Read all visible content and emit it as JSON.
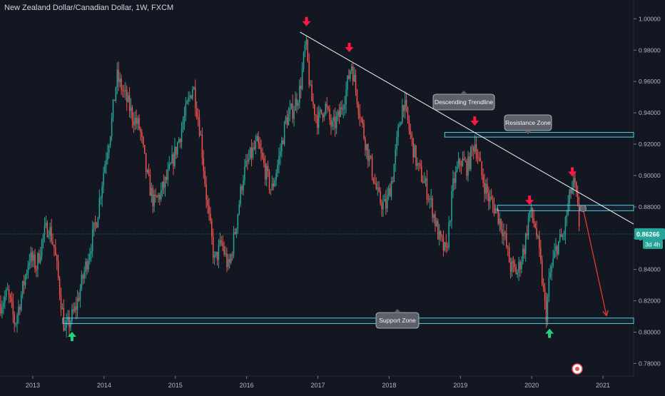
{
  "header": {
    "symbol_title": "New Zealand Dollar/Canadian Dollar, 1W, FXCM"
  },
  "colors": {
    "background": "#131722",
    "up_candle": "#26a69a",
    "down_candle": "#ef5350",
    "zone_border": "#4dd0e1",
    "trendline": "#e0e3eb",
    "arrow_red": "#ff1744",
    "arrow_green": "#26d07c",
    "projection": "#e53935",
    "price_badge": "#26a69a",
    "label_bg": "#5d606b"
  },
  "annotations": {
    "descending_trendline": "Descending Trendline",
    "resistance_zone": "Resistance Zone",
    "support_zone": "Support Zone"
  },
  "price_badge": {
    "value": "0.86266",
    "countdown": "3d 4h"
  },
  "chart_data": {
    "type": "candlestick",
    "title": "New Zealand Dollar/Canadian Dollar, 1W, FXCM",
    "x_axis_labels": [
      "2013",
      "2014",
      "2015",
      "2016",
      "2017",
      "2018",
      "2019",
      "2020",
      "2021"
    ],
    "y_axis_labels": [
      "1.00000",
      "0.98000",
      "0.96000",
      "0.94000",
      "0.92000",
      "0.90000",
      "0.88000",
      "0.86000",
      "0.84000",
      "0.82000",
      "0.80000",
      "0.78000"
    ],
    "ylim": [
      0.772,
      1.012
    ],
    "xlim": [
      2012.54,
      2021.43
    ],
    "current_price": 0.86266,
    "price_path": [
      [
        2012.55,
        0.818
      ],
      [
        2012.65,
        0.825
      ],
      [
        2012.75,
        0.805
      ],
      [
        2012.85,
        0.826
      ],
      [
        2012.95,
        0.848
      ],
      [
        2013.05,
        0.842
      ],
      [
        2013.15,
        0.862
      ],
      [
        2013.22,
        0.868
      ],
      [
        2013.3,
        0.854
      ],
      [
        2013.38,
        0.826
      ],
      [
        2013.45,
        0.8
      ],
      [
        2013.52,
        0.807
      ],
      [
        2013.6,
        0.815
      ],
      [
        2013.7,
        0.834
      ],
      [
        2013.8,
        0.853
      ],
      [
        2013.9,
        0.873
      ],
      [
        2014.0,
        0.905
      ],
      [
        2014.1,
        0.932
      ],
      [
        2014.18,
        0.963
      ],
      [
        2014.3,
        0.95
      ],
      [
        2014.4,
        0.938
      ],
      [
        2014.5,
        0.93
      ],
      [
        2014.6,
        0.9
      ],
      [
        2014.7,
        0.882
      ],
      [
        2014.8,
        0.889
      ],
      [
        2014.9,
        0.9
      ],
      [
        2015.0,
        0.915
      ],
      [
        2015.1,
        0.932
      ],
      [
        2015.2,
        0.95
      ],
      [
        2015.25,
        0.958
      ],
      [
        2015.35,
        0.928
      ],
      [
        2015.45,
        0.88
      ],
      [
        2015.55,
        0.845
      ],
      [
        2015.65,
        0.857
      ],
      [
        2015.75,
        0.84
      ],
      [
        2015.85,
        0.868
      ],
      [
        2015.95,
        0.9
      ],
      [
        2016.05,
        0.912
      ],
      [
        2016.15,
        0.92
      ],
      [
        2016.25,
        0.905
      ],
      [
        2016.35,
        0.89
      ],
      [
        2016.45,
        0.91
      ],
      [
        2016.55,
        0.935
      ],
      [
        2016.65,
        0.942
      ],
      [
        2016.75,
        0.955
      ],
      [
        2016.83,
        0.985
      ],
      [
        2016.9,
        0.95
      ],
      [
        2017.0,
        0.935
      ],
      [
        2017.1,
        0.945
      ],
      [
        2017.2,
        0.93
      ],
      [
        2017.3,
        0.938
      ],
      [
        2017.4,
        0.955
      ],
      [
        2017.47,
        0.972
      ],
      [
        2017.55,
        0.95
      ],
      [
        2017.65,
        0.925
      ],
      [
        2017.75,
        0.905
      ],
      [
        2017.85,
        0.885
      ],
      [
        2017.95,
        0.88
      ],
      [
        2018.05,
        0.9
      ],
      [
        2018.15,
        0.935
      ],
      [
        2018.2,
        0.948
      ],
      [
        2018.3,
        0.925
      ],
      [
        2018.4,
        0.905
      ],
      [
        2018.5,
        0.895
      ],
      [
        2018.6,
        0.88
      ],
      [
        2018.7,
        0.86
      ],
      [
        2018.8,
        0.85
      ],
      [
        2018.9,
        0.895
      ],
      [
        2019.0,
        0.91
      ],
      [
        2019.1,
        0.905
      ],
      [
        2019.2,
        0.922
      ],
      [
        2019.3,
        0.9
      ],
      [
        2019.4,
        0.885
      ],
      [
        2019.5,
        0.878
      ],
      [
        2019.6,
        0.865
      ],
      [
        2019.7,
        0.842
      ],
      [
        2019.8,
        0.838
      ],
      [
        2019.9,
        0.855
      ],
      [
        2019.97,
        0.877
      ],
      [
        2020.05,
        0.868
      ],
      [
        2020.12,
        0.845
      ],
      [
        2020.2,
        0.81
      ],
      [
        2020.25,
        0.835
      ],
      [
        2020.35,
        0.855
      ],
      [
        2020.45,
        0.862
      ],
      [
        2020.5,
        0.878
      ],
      [
        2020.55,
        0.89
      ],
      [
        2020.6,
        0.895
      ],
      [
        2020.65,
        0.876
      ],
      [
        2020.68,
        0.8627
      ]
    ],
    "horizontal_levels": [
      {
        "name": "resistance_zone_upper",
        "y1": 0.9245,
        "y2": 0.9275
      },
      {
        "name": "resistance_zone_lower",
        "y1": 0.8775,
        "y2": 0.881
      },
      {
        "name": "support_zone",
        "y1": 0.8055,
        "y2": 0.809
      }
    ],
    "trendline": {
      "x1": 2016.75,
      "y1": 0.9915,
      "x2": 2021.43,
      "y2": 0.869
    },
    "projection": {
      "x1": 2020.72,
      "y1": 0.879,
      "x2": 2021.05,
      "y2": 0.8105
    },
    "down_arrows_at": [
      [
        2016.84,
        0.998
      ],
      [
        2017.44,
        0.9815
      ],
      [
        2019.2,
        0.9345
      ],
      [
        2019.97,
        0.884
      ],
      [
        2020.57,
        0.902
      ]
    ],
    "up_arrows_at": [
      [
        2013.55,
        0.7975
      ],
      [
        2020.25,
        0.7995
      ]
    ]
  }
}
